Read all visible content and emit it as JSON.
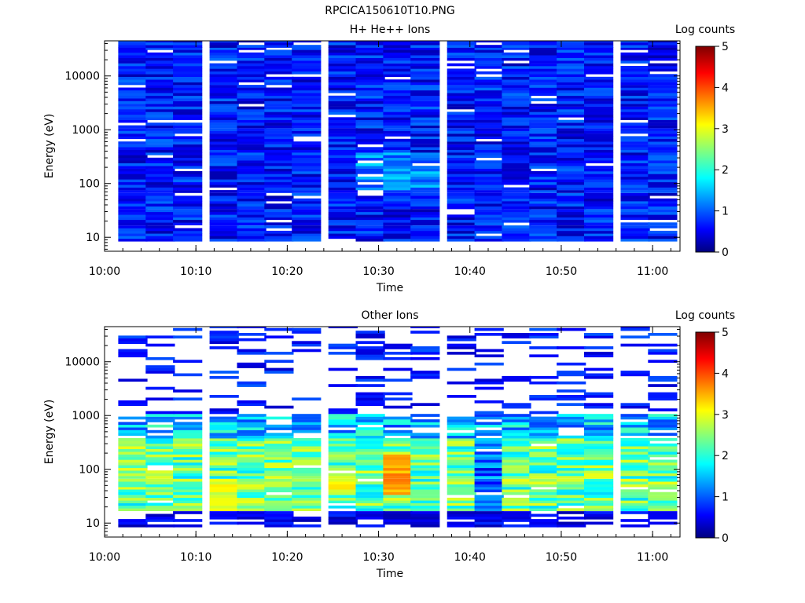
{
  "figure_title": "RPCICA150610T10.PNG",
  "colors": {
    "background": "#ffffff",
    "colormap": [
      "#00007f",
      "#0000ff",
      "#007fff",
      "#00ffff",
      "#7fff7f",
      "#ffff00",
      "#ff7f00",
      "#ff0000",
      "#7f0000"
    ]
  },
  "chart_data": [
    {
      "type": "heatmap",
      "title": "H+ He++ Ions",
      "xlabel": "Time",
      "ylabel": "Energy (eV)",
      "x_ticks": [
        "10:00",
        "10:10",
        "10:20",
        "10:30",
        "10:40",
        "10:50",
        "11:00"
      ],
      "x_range": [
        "10:00",
        "11:03"
      ],
      "y_scale": "log",
      "y_ticks": [
        10,
        100,
        1000,
        10000
      ],
      "y_tick_labels": [
        "10",
        "100",
        "1000",
        "10000"
      ],
      "y_range": [
        5.5,
        45000
      ],
      "colorbar": {
        "label": "Log counts",
        "range": [
          0,
          5
        ],
        "ticks": [
          "0",
          "1",
          "2",
          "3",
          "4",
          "5"
        ]
      },
      "time_bins": [
        "10:02",
        "10:05",
        "10:08",
        "10:12",
        "10:15",
        "10:18",
        "10:21",
        "10:25",
        "10:28",
        "10:31",
        "10:34",
        "10:38",
        "10:41",
        "10:44",
        "10:47",
        "10:50",
        "10:53",
        "10:57",
        "11:00"
      ],
      "energy_bins": [
        10,
        14,
        20,
        28,
        40,
        56,
        80,
        113,
        160,
        226,
        320,
        450,
        640,
        900,
        1280,
        1810,
        2560,
        3620,
        5120,
        7240,
        10240,
        14480,
        20480,
        28960,
        40000
      ],
      "description": "Log counts mostly 0.3-1.0 (blue) across all times and energies; slightly higher (~1.3-1.8) near 10:30-10:35 at 100-300 eV; scattered empty bins."
    },
    {
      "type": "heatmap",
      "title": "Other Ions",
      "xlabel": "Time",
      "ylabel": "Energy (eV)",
      "x_ticks": [
        "10:00",
        "10:10",
        "10:20",
        "10:30",
        "10:40",
        "10:50",
        "11:00"
      ],
      "x_range": [
        "10:00",
        "11:03"
      ],
      "y_scale": "log",
      "y_ticks": [
        10,
        100,
        1000,
        10000
      ],
      "y_tick_labels": [
        "10",
        "100",
        "1000",
        "10000"
      ],
      "y_range": [
        5.5,
        45000
      ],
      "colorbar": {
        "label": "Log counts",
        "range": [
          0,
          5
        ],
        "ticks": [
          "0",
          "1",
          "2",
          "3",
          "4",
          "5"
        ]
      },
      "time_bins": [
        "10:02",
        "10:05",
        "10:08",
        "10:12",
        "10:15",
        "10:18",
        "10:21",
        "10:25",
        "10:28",
        "10:31",
        "10:34",
        "10:38",
        "10:41",
        "10:44",
        "10:47",
        "10:50",
        "10:53",
        "10:57",
        "11:00"
      ],
      "energy_bins": [
        10,
        14,
        20,
        28,
        40,
        56,
        80,
        113,
        160,
        226,
        320,
        450,
        640,
        900,
        1280,
        1810,
        2560,
        3620,
        5120,
        7240,
        10240,
        14480,
        20480,
        28960,
        40000
      ],
      "peak_intervals": [
        {
          "time": "10:31",
          "energy_range": [
            40,
            200
          ],
          "log_counts": 3.8
        },
        {
          "time": "10:12",
          "energy_range": [
            20,
            60
          ],
          "log_counts": 3.2
        },
        {
          "time": "10:25",
          "energy_range": [
            30,
            70
          ],
          "log_counts": 3.3
        }
      ],
      "description": "Strong band of log counts 2.5-3.8 between ~20 and ~400 eV for most times; sparse low-count (blue) streaks above 1000 eV; fewer counts around 10:40."
    }
  ]
}
